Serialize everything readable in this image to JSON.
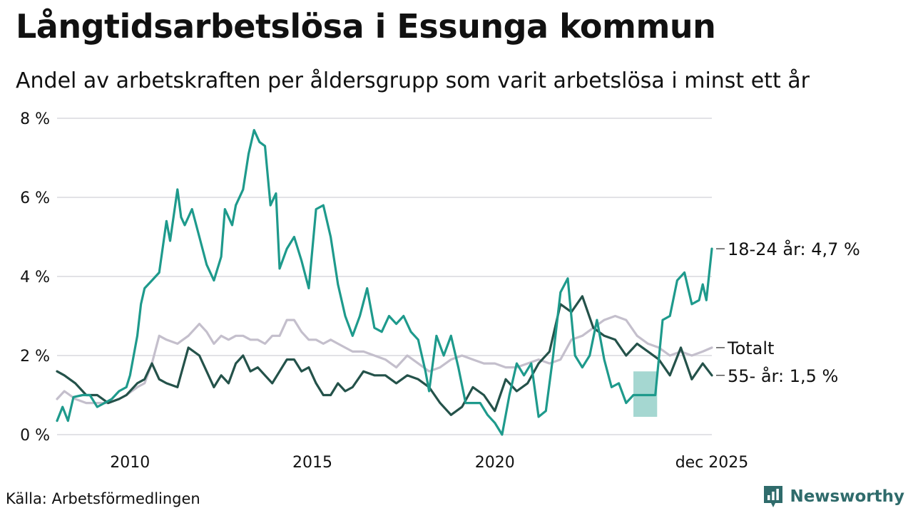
{
  "header": {
    "title": "Långtidsarbetslösa i Essunga kommun",
    "subtitle": "Andel av arbetskraften per åldersgrupp som varit arbetslösa i minst ett år"
  },
  "footer": {
    "source": "Källa: Arbetsförmedlingen",
    "brand": "Newsworthy"
  },
  "chart_data": {
    "type": "line",
    "title": "Långtidsarbetslösa i Essunga kommun",
    "subtitle": "Andel av arbetskraften per åldersgrupp som varit arbetslösa i minst ett år",
    "xlabel": "",
    "ylabel": "",
    "xlim": [
      2008.0,
      2025.95
    ],
    "ylim": [
      0,
      8
    ],
    "y_ticks": [
      {
        "value": 0,
        "label": "0 %"
      },
      {
        "value": 2,
        "label": "2 %"
      },
      {
        "value": 4,
        "label": "4 %"
      },
      {
        "value": 6,
        "label": "6 %"
      },
      {
        "value": 8,
        "label": "8 %"
      }
    ],
    "x_ticks": [
      {
        "value": 2010,
        "label": "2010"
      },
      {
        "value": 2015,
        "label": "2015"
      },
      {
        "value": 2020,
        "label": "2020"
      },
      {
        "value": 2025.95,
        "label": "dec 2025"
      }
    ],
    "grid": true,
    "legend": "inline-right",
    "series": [
      {
        "name": "Totalt",
        "label": "Totalt",
        "color": "#c4bfcc",
        "points": [
          [
            2008.0,
            0.9
          ],
          [
            2008.2,
            1.1
          ],
          [
            2008.5,
            0.9
          ],
          [
            2008.8,
            0.8
          ],
          [
            2009.1,
            0.8
          ],
          [
            2009.4,
            0.8
          ],
          [
            2009.7,
            0.9
          ],
          [
            2009.9,
            1.0
          ],
          [
            2010.2,
            1.2
          ],
          [
            2010.4,
            1.3
          ],
          [
            2010.6,
            1.8
          ],
          [
            2010.8,
            2.5
          ],
          [
            2011.0,
            2.4
          ],
          [
            2011.3,
            2.3
          ],
          [
            2011.6,
            2.5
          ],
          [
            2011.9,
            2.8
          ],
          [
            2012.1,
            2.6
          ],
          [
            2012.3,
            2.3
          ],
          [
            2012.5,
            2.5
          ],
          [
            2012.7,
            2.4
          ],
          [
            2012.9,
            2.5
          ],
          [
            2013.1,
            2.5
          ],
          [
            2013.3,
            2.4
          ],
          [
            2013.5,
            2.4
          ],
          [
            2013.7,
            2.3
          ],
          [
            2013.9,
            2.5
          ],
          [
            2014.1,
            2.5
          ],
          [
            2014.3,
            2.9
          ],
          [
            2014.5,
            2.9
          ],
          [
            2014.7,
            2.6
          ],
          [
            2014.9,
            2.4
          ],
          [
            2015.1,
            2.4
          ],
          [
            2015.3,
            2.3
          ],
          [
            2015.5,
            2.4
          ],
          [
            2015.7,
            2.3
          ],
          [
            2015.9,
            2.2
          ],
          [
            2016.1,
            2.1
          ],
          [
            2016.4,
            2.1
          ],
          [
            2016.7,
            2.0
          ],
          [
            2017.0,
            1.9
          ],
          [
            2017.3,
            1.7
          ],
          [
            2017.6,
            2.0
          ],
          [
            2017.9,
            1.8
          ],
          [
            2018.2,
            1.6
          ],
          [
            2018.5,
            1.7
          ],
          [
            2018.8,
            1.9
          ],
          [
            2019.1,
            2.0
          ],
          [
            2019.4,
            1.9
          ],
          [
            2019.7,
            1.8
          ],
          [
            2020.0,
            1.8
          ],
          [
            2020.3,
            1.7
          ],
          [
            2020.6,
            1.7
          ],
          [
            2020.9,
            1.8
          ],
          [
            2021.2,
            1.9
          ],
          [
            2021.5,
            1.8
          ],
          [
            2021.8,
            1.9
          ],
          [
            2022.1,
            2.4
          ],
          [
            2022.4,
            2.5
          ],
          [
            2022.7,
            2.7
          ],
          [
            2023.0,
            2.9
          ],
          [
            2023.3,
            3.0
          ],
          [
            2023.6,
            2.9
          ],
          [
            2023.9,
            2.5
          ],
          [
            2024.2,
            2.3
          ],
          [
            2024.5,
            2.2
          ],
          [
            2024.8,
            2.0
          ],
          [
            2025.1,
            2.1
          ],
          [
            2025.4,
            2.0
          ],
          [
            2025.7,
            2.1
          ],
          [
            2025.95,
            2.2
          ]
        ]
      },
      {
        "name": "55- år",
        "label": "55- år: 1,5 %",
        "color": "#24524a",
        "points": [
          [
            2008.0,
            1.6
          ],
          [
            2008.2,
            1.5
          ],
          [
            2008.5,
            1.3
          ],
          [
            2008.8,
            1.0
          ],
          [
            2009.1,
            1.0
          ],
          [
            2009.4,
            0.8
          ],
          [
            2009.7,
            0.9
          ],
          [
            2009.9,
            1.0
          ],
          [
            2010.2,
            1.3
          ],
          [
            2010.4,
            1.4
          ],
          [
            2010.6,
            1.8
          ],
          [
            2010.8,
            1.4
          ],
          [
            2011.0,
            1.3
          ],
          [
            2011.3,
            1.2
          ],
          [
            2011.6,
            2.2
          ],
          [
            2011.9,
            2.0
          ],
          [
            2012.1,
            1.6
          ],
          [
            2012.3,
            1.2
          ],
          [
            2012.5,
            1.5
          ],
          [
            2012.7,
            1.3
          ],
          [
            2012.9,
            1.8
          ],
          [
            2013.1,
            2.0
          ],
          [
            2013.3,
            1.6
          ],
          [
            2013.5,
            1.7
          ],
          [
            2013.7,
            1.5
          ],
          [
            2013.9,
            1.3
          ],
          [
            2014.1,
            1.6
          ],
          [
            2014.3,
            1.9
          ],
          [
            2014.5,
            1.9
          ],
          [
            2014.7,
            1.6
          ],
          [
            2014.9,
            1.7
          ],
          [
            2015.1,
            1.3
          ],
          [
            2015.3,
            1.0
          ],
          [
            2015.5,
            1.0
          ],
          [
            2015.7,
            1.3
          ],
          [
            2015.9,
            1.1
          ],
          [
            2016.1,
            1.2
          ],
          [
            2016.4,
            1.6
          ],
          [
            2016.7,
            1.5
          ],
          [
            2017.0,
            1.5
          ],
          [
            2017.3,
            1.3
          ],
          [
            2017.6,
            1.5
          ],
          [
            2017.9,
            1.4
          ],
          [
            2018.2,
            1.2
          ],
          [
            2018.5,
            0.8
          ],
          [
            2018.8,
            0.5
          ],
          [
            2019.1,
            0.7
          ],
          [
            2019.4,
            1.2
          ],
          [
            2019.7,
            1.0
          ],
          [
            2020.0,
            0.6
          ],
          [
            2020.3,
            1.4
          ],
          [
            2020.6,
            1.1
          ],
          [
            2020.9,
            1.3
          ],
          [
            2021.2,
            1.8
          ],
          [
            2021.5,
            2.1
          ],
          [
            2021.8,
            3.3
          ],
          [
            2022.1,
            3.1
          ],
          [
            2022.4,
            3.5
          ],
          [
            2022.7,
            2.7
          ],
          [
            2023.0,
            2.5
          ],
          [
            2023.3,
            2.4
          ],
          [
            2023.6,
            2.0
          ],
          [
            2023.9,
            2.3
          ],
          [
            2024.2,
            2.1
          ],
          [
            2024.5,
            1.9
          ],
          [
            2024.8,
            1.5
          ],
          [
            2025.1,
            2.2
          ],
          [
            2025.4,
            1.4
          ],
          [
            2025.7,
            1.8
          ],
          [
            2025.95,
            1.5
          ]
        ]
      },
      {
        "name": "18-24 år",
        "label": "18-24 år: 4,7 %",
        "color": "#1e9a8c",
        "points": [
          [
            2008.0,
            0.35
          ],
          [
            2008.15,
            0.7
          ],
          [
            2008.3,
            0.35
          ],
          [
            2008.45,
            0.95
          ],
          [
            2008.7,
            1.0
          ],
          [
            2008.9,
            1.0
          ],
          [
            2009.1,
            0.7
          ],
          [
            2009.3,
            0.8
          ],
          [
            2009.5,
            0.9
          ],
          [
            2009.7,
            1.1
          ],
          [
            2009.9,
            1.2
          ],
          [
            2010.0,
            1.5
          ],
          [
            2010.2,
            2.5
          ],
          [
            2010.3,
            3.3
          ],
          [
            2010.4,
            3.7
          ],
          [
            2010.6,
            3.9
          ],
          [
            2010.8,
            4.1
          ],
          [
            2011.0,
            5.4
          ],
          [
            2011.1,
            4.9
          ],
          [
            2011.3,
            6.2
          ],
          [
            2011.4,
            5.5
          ],
          [
            2011.5,
            5.3
          ],
          [
            2011.7,
            5.7
          ],
          [
            2011.9,
            5.0
          ],
          [
            2012.1,
            4.3
          ],
          [
            2012.3,
            3.9
          ],
          [
            2012.5,
            4.5
          ],
          [
            2012.6,
            5.7
          ],
          [
            2012.8,
            5.3
          ],
          [
            2012.9,
            5.8
          ],
          [
            2013.1,
            6.2
          ],
          [
            2013.25,
            7.1
          ],
          [
            2013.4,
            7.7
          ],
          [
            2013.55,
            7.4
          ],
          [
            2013.7,
            7.3
          ],
          [
            2013.85,
            5.8
          ],
          [
            2014.0,
            6.1
          ],
          [
            2014.1,
            4.2
          ],
          [
            2014.3,
            4.7
          ],
          [
            2014.5,
            5.0
          ],
          [
            2014.7,
            4.4
          ],
          [
            2014.9,
            3.7
          ],
          [
            2015.1,
            5.7
          ],
          [
            2015.3,
            5.8
          ],
          [
            2015.5,
            5.0
          ],
          [
            2015.7,
            3.8
          ],
          [
            2015.9,
            3.0
          ],
          [
            2016.1,
            2.5
          ],
          [
            2016.3,
            3.0
          ],
          [
            2016.5,
            3.7
          ],
          [
            2016.7,
            2.7
          ],
          [
            2016.9,
            2.6
          ],
          [
            2017.1,
            3.0
          ],
          [
            2017.3,
            2.8
          ],
          [
            2017.5,
            3.0
          ],
          [
            2017.7,
            2.6
          ],
          [
            2017.9,
            2.4
          ],
          [
            2018.1,
            1.6
          ],
          [
            2018.2,
            1.1
          ],
          [
            2018.4,
            2.5
          ],
          [
            2018.6,
            2.0
          ],
          [
            2018.8,
            2.5
          ],
          [
            2019.0,
            1.7
          ],
          [
            2019.2,
            0.8
          ],
          [
            2019.4,
            0.8
          ],
          [
            2019.6,
            0.8
          ],
          [
            2019.8,
            0.5
          ],
          [
            2020.0,
            0.3
          ],
          [
            2020.2,
            0.0
          ],
          [
            2020.4,
            1.0
          ],
          [
            2020.6,
            1.8
          ],
          [
            2020.8,
            1.5
          ],
          [
            2021.0,
            1.8
          ],
          [
            2021.2,
            0.45
          ],
          [
            2021.4,
            0.6
          ],
          [
            2021.6,
            2.0
          ],
          [
            2021.8,
            3.6
          ],
          [
            2022.0,
            3.95
          ],
          [
            2022.2,
            2.0
          ],
          [
            2022.4,
            1.7
          ],
          [
            2022.6,
            2.0
          ],
          [
            2022.8,
            2.9
          ],
          [
            2023.0,
            1.9
          ],
          [
            2023.2,
            1.2
          ],
          [
            2023.4,
            1.3
          ],
          [
            2023.6,
            0.8
          ],
          [
            2023.8,
            1.0
          ],
          [
            2024.0,
            1.0
          ],
          [
            2024.2,
            1.0
          ],
          [
            2024.4,
            1.0
          ],
          [
            2024.6,
            2.9
          ],
          [
            2024.8,
            3.0
          ],
          [
            2025.0,
            3.9
          ],
          [
            2025.2,
            4.1
          ],
          [
            2025.4,
            3.3
          ],
          [
            2025.6,
            3.4
          ],
          [
            2025.7,
            3.8
          ],
          [
            2025.8,
            3.4
          ],
          [
            2025.95,
            4.7
          ]
        ]
      }
    ],
    "uncertainty_band": {
      "series": "18-24 år",
      "color": "#1e9a8c",
      "x_range": [
        2023.8,
        2024.45
      ],
      "y_low": 0.45,
      "y_high": 1.6
    }
  }
}
